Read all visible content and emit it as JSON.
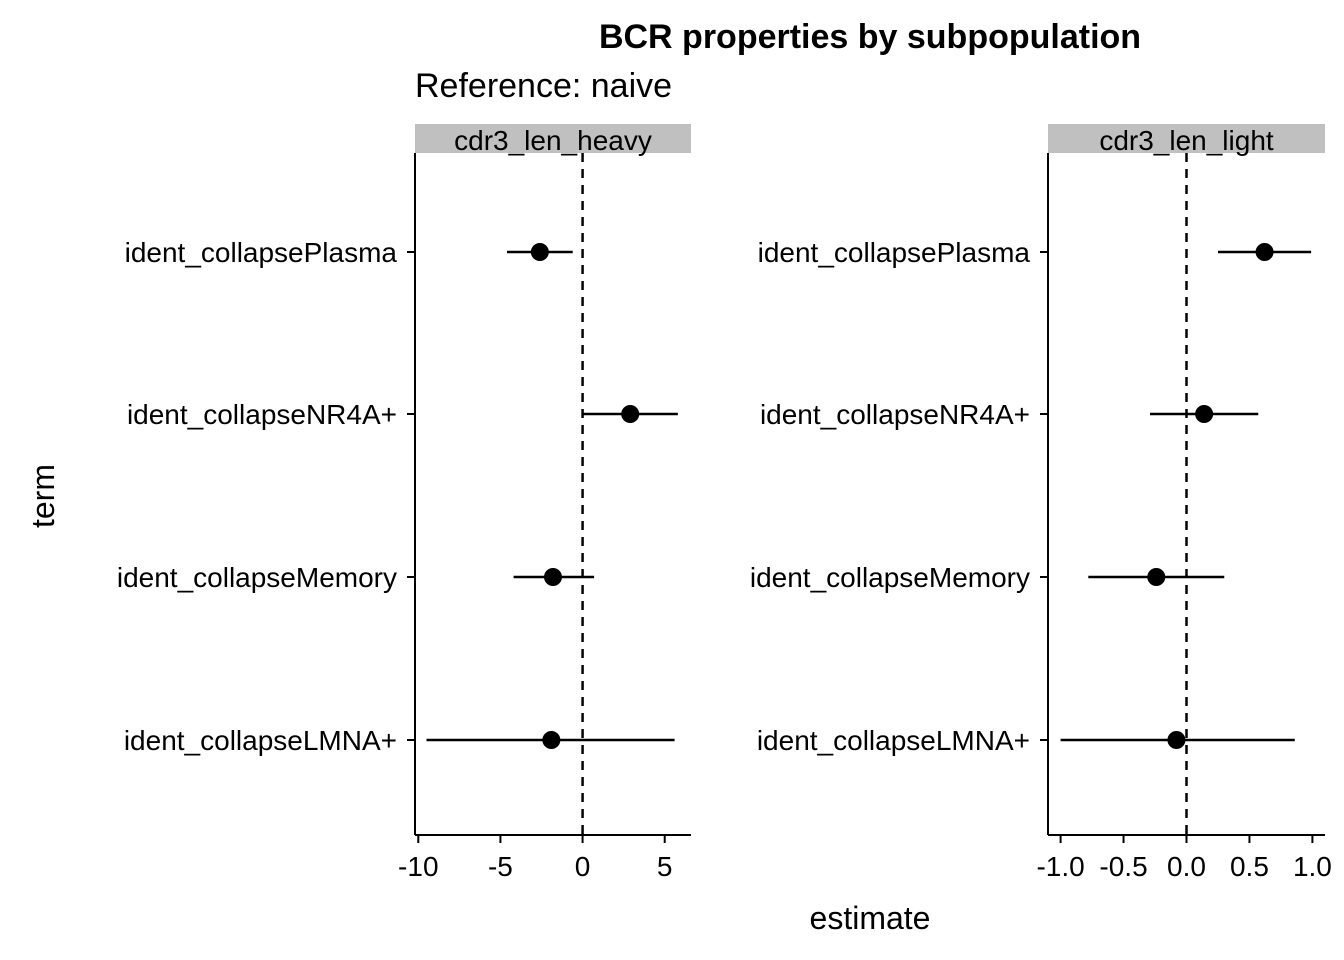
{
  "chart_data": {
    "type": "scatter",
    "subtype": "dot-and-whisker (point estimate with interval)",
    "title": "BCR properties by subpopulation",
    "subtitle": "Reference: naive",
    "xlabel": "estimate",
    "ylabel": "term",
    "grid": false,
    "reference_line": {
      "x": 0,
      "style": "dashed"
    },
    "terms": [
      "ident_collapsePlasma",
      "ident_collapseNR4A+",
      "ident_collapseMemory",
      "ident_collapseLMNA+"
    ],
    "panels": [
      {
        "strip": "cdr3_len_heavy",
        "xlim": [
          -10.2,
          6.6
        ],
        "xticks": [
          -10,
          -5,
          0,
          5
        ],
        "xtick_labels": [
          "-10",
          "-5",
          "0",
          "5"
        ],
        "points": [
          {
            "term": "ident_collapsePlasma",
            "estimate": -2.6,
            "low": -4.6,
            "high": -0.6
          },
          {
            "term": "ident_collapseNR4A+",
            "estimate": 2.9,
            "low": 0.0,
            "high": 5.8
          },
          {
            "term": "ident_collapseMemory",
            "estimate": -1.8,
            "low": -4.2,
            "high": 0.7
          },
          {
            "term": "ident_collapseLMNA+",
            "estimate": -1.9,
            "low": -9.5,
            "high": 5.6
          }
        ]
      },
      {
        "strip": "cdr3_len_light",
        "xlim": [
          -1.1,
          1.1
        ],
        "xticks": [
          -1.0,
          -0.5,
          0.0,
          0.5,
          1.0
        ],
        "xtick_labels": [
          "-1.0",
          "-0.5",
          "0.0",
          "0.5",
          "1.0"
        ],
        "points": [
          {
            "term": "ident_collapsePlasma",
            "estimate": 0.62,
            "low": 0.25,
            "high": 0.99
          },
          {
            "term": "ident_collapseNR4A+",
            "estimate": 0.14,
            "low": -0.29,
            "high": 0.57
          },
          {
            "term": "ident_collapseMemory",
            "estimate": -0.24,
            "low": -0.78,
            "high": 0.3
          },
          {
            "term": "ident_collapseLMNA+",
            "estimate": -0.08,
            "low": -1.0,
            "high": 0.86
          }
        ]
      }
    ]
  }
}
